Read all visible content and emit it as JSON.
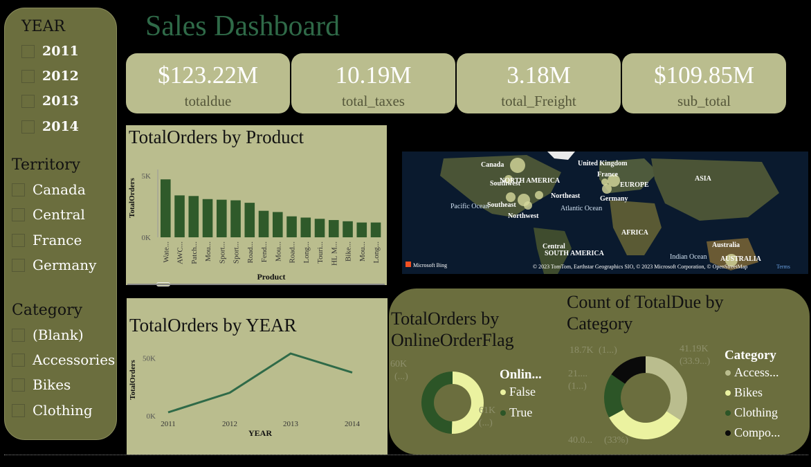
{
  "title": "Sales Dashboard",
  "slicers": {
    "year": {
      "title": "YEAR",
      "items": [
        "2011",
        "2012",
        "2013",
        "2014"
      ]
    },
    "territory": {
      "title": "Territory",
      "items": [
        "Canada",
        "Central",
        "France",
        "Germany"
      ]
    },
    "category": {
      "title": "Category",
      "items": [
        "(Blank)",
        "Accessories",
        "Bikes",
        "Clothing"
      ]
    }
  },
  "kpis": [
    {
      "value": "$123.22M",
      "label": "totaldue"
    },
    {
      "value": "10.19M",
      "label": "total_taxes"
    },
    {
      "value": "3.18M",
      "label": "total_Freight"
    },
    {
      "value": "$109.85M",
      "label": "sub_total"
    }
  ],
  "colors": {
    "panel": "#6b6e3e",
    "visual_bg": "#babd8e",
    "bar": "#2f5a2a",
    "line": "#2f6a48",
    "title": "#2f6a48",
    "donut_light": "#ebf2a0",
    "donut_dark": "#2c5527",
    "donut_tan": "#babd8e",
    "donut_black": "#0a0a0a"
  },
  "chart_data": [
    {
      "type": "bar",
      "title": "TotalOrders by Product",
      "xlabel": "Product",
      "ylabel": "TotalOrders",
      "yticks": [
        "0K",
        "5K"
      ],
      "ylim": [
        0,
        5500
      ],
      "categories": [
        "Wate...",
        "AWC...",
        "Patch...",
        "Mou...",
        "Sport...",
        "Sport...",
        "Road...",
        "Fend...",
        "Mou...",
        "Road...",
        "Long...",
        "Touri...",
        "HL M...",
        "Bike...",
        "Mou...",
        "Long..."
      ],
      "values": [
        4700,
        3400,
        3350,
        3100,
        3050,
        3000,
        2800,
        2150,
        2050,
        1700,
        1600,
        1500,
        1400,
        1300,
        1200,
        1200
      ]
    },
    {
      "type": "line",
      "title": "TotalOrders by YEAR",
      "xlabel": "YEAR",
      "ylabel": "TotalOrders",
      "yticks": [
        "0K",
        "50K"
      ],
      "ylim": [
        0,
        60000
      ],
      "categories": [
        "2011",
        "2012",
        "2013",
        "2014"
      ],
      "values": [
        3000,
        20000,
        54000,
        37500
      ]
    },
    {
      "type": "pie",
      "title": "TotalOrders by OnlineOrderFlag",
      "legend_title": "Onlin...",
      "labels": [
        "False",
        "True"
      ],
      "values": [
        61000,
        60000
      ],
      "data_labels": [
        {
          "value": "60K",
          "pct": "(...)"
        },
        {
          "value": "61K",
          "pct": "(...)"
        }
      ]
    },
    {
      "type": "pie",
      "title": "Count of TotalDue by Category",
      "legend_title": "Category",
      "labels": [
        "Access...",
        "Bikes",
        "Clothing",
        "Compo..."
      ],
      "values": [
        41190,
        40000,
        21000,
        18700
      ],
      "data_labels": [
        {
          "value": "41.19K",
          "pct": "(33.9...)"
        },
        {
          "value": "40.0...",
          "pct": "(33%)"
        },
        {
          "value": "21....",
          "pct": "(1...)"
        },
        {
          "value": "18.7K",
          "pct": "(1...)"
        }
      ]
    }
  ],
  "map": {
    "labels": [
      "Canada",
      "United Kingdom",
      "France",
      "NORTH AMERICA",
      "Southwest",
      "EUROPE",
      "ASIA",
      "Northeast",
      "Germany",
      "Southeast",
      "Pacific Ocean",
      "Atlantic Ocean",
      "Northwest",
      "AFRICA",
      "Central",
      "SOUTH AMERICA",
      "Australia",
      "AUSTRALIA",
      "Indian Ocean"
    ],
    "attribution": "© 2023 TomTom, Earthstar Geographics SIO, © 2023 Microsoft Corporation, © OpenStreetMap",
    "terms": "Terms",
    "brand": "Microsoft Bing"
  }
}
